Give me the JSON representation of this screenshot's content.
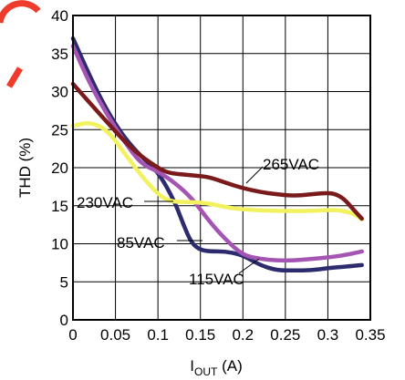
{
  "chart_data": {
    "type": "line",
    "title": "",
    "xlabel_main": "I",
    "xlabel_sub": "OUT",
    "xlabel_unit": " (A)",
    "ylabel": "THD (%)",
    "xlim": [
      0,
      0.35
    ],
    "ylim": [
      0,
      40
    ],
    "grid": true,
    "x_ticks": [
      0,
      0.05,
      0.1,
      0.15,
      0.2,
      0.25,
      0.3,
      0.35
    ],
    "x_tick_labels": [
      "0",
      "0.05",
      "0.1",
      "0.15",
      "0.2",
      "0.25",
      "0.3",
      "0.35"
    ],
    "y_ticks": [
      0,
      5,
      10,
      15,
      20,
      25,
      30,
      35,
      40
    ],
    "y_tick_labels": [
      "0",
      "5",
      "10",
      "15",
      "20",
      "25",
      "30",
      "35",
      "40"
    ],
    "series": [
      {
        "name": "85VAC",
        "color": "#2b2b6e",
        "x": [
          0,
          0.02,
          0.04,
          0.06,
          0.08,
          0.1,
          0.12,
          0.13,
          0.14,
          0.15,
          0.16,
          0.18,
          0.2,
          0.22,
          0.24,
          0.26,
          0.28,
          0.3,
          0.32,
          0.34
        ],
        "y": [
          37,
          32,
          27.5,
          24,
          21.5,
          19.5,
          15.5,
          12.5,
          10,
          9.2,
          9,
          9,
          8.5,
          7.2,
          6.5,
          6.5,
          6.5,
          6.8,
          7,
          7.2
        ]
      },
      {
        "name": "115VAC",
        "color": "#a455b3",
        "x": [
          0,
          0.02,
          0.04,
          0.06,
          0.08,
          0.1,
          0.12,
          0.14,
          0.16,
          0.18,
          0.2,
          0.22,
          0.24,
          0.26,
          0.28,
          0.3,
          0.32,
          0.34
        ],
        "y": [
          36,
          31,
          27,
          23.5,
          20.5,
          19.5,
          18,
          16,
          13,
          10.5,
          8.5,
          8,
          7.8,
          7.8,
          8,
          8.2,
          8.5,
          9
        ]
      },
      {
        "name": "230VAC",
        "color": "#f1f25e",
        "x": [
          0,
          0.02,
          0.04,
          0.06,
          0.08,
          0.1,
          0.11,
          0.12,
          0.14,
          0.16,
          0.18,
          0.2,
          0.24,
          0.28,
          0.31,
          0.33,
          0.34
        ],
        "y": [
          25.5,
          26,
          25,
          22,
          19,
          16.5,
          15.8,
          15.5,
          15.5,
          15.3,
          14.8,
          14.5,
          14.3,
          14.3,
          14.5,
          14,
          13.2
        ]
      },
      {
        "name": "265VAC",
        "color": "#7a1a1a",
        "x": [
          0,
          0.02,
          0.04,
          0.06,
          0.08,
          0.1,
          0.11,
          0.12,
          0.14,
          0.16,
          0.18,
          0.2,
          0.22,
          0.24,
          0.26,
          0.28,
          0.3,
          0.31,
          0.32,
          0.33,
          0.34
        ],
        "y": [
          31,
          28.5,
          26,
          23.5,
          21.5,
          20,
          19.4,
          19.2,
          19,
          18.8,
          18,
          17.3,
          16.8,
          16.5,
          16.3,
          16.5,
          16.7,
          16.5,
          15.8,
          14.5,
          13.3
        ]
      }
    ],
    "annotations": [
      {
        "text": "265VAC",
        "series": "265VAC"
      },
      {
        "text": "230VAC",
        "series": "230VAC"
      },
      {
        "text": "85VAC",
        "series": "85VAC"
      },
      {
        "text": "115VAC",
        "series": "115VAC"
      }
    ]
  },
  "colors": {
    "grid": "#000000",
    "logo": "#ef3b2c"
  }
}
